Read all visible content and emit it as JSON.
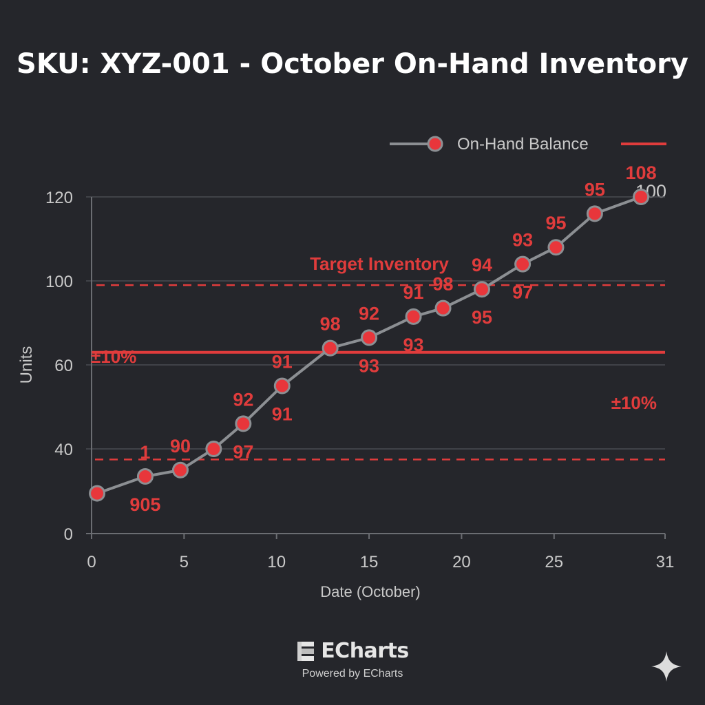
{
  "chart_data": {
    "type": "line",
    "title": "SKU: XYZ-001 - October On-Hand Inventory",
    "xlabel": "Date (October)",
    "ylabel": "Units",
    "x_ticks": [
      "0",
      "5",
      "10",
      "15",
      "20",
      "25",
      "31"
    ],
    "x_tick_values": [
      0,
      5,
      10,
      15,
      20,
      25,
      31
    ],
    "y_ticks": [
      "0",
      "40",
      "60",
      "100",
      "120"
    ],
    "y_tick_values": [
      0,
      40,
      60,
      100,
      120
    ],
    "xlim": [
      0,
      31
    ],
    "grid": true,
    "legend": {
      "position": "top-right",
      "entries": [
        "On-Hand Balance",
        ""
      ]
    },
    "series": [
      {
        "name": "On-Hand Balance",
        "x": [
          0.3,
          2.9,
          4.8,
          6.6,
          8.2,
          10.3,
          12.9,
          15,
          17.4,
          19,
          21.1,
          23.3,
          25.1,
          27.2,
          29.7
        ],
        "y": [
          19,
          27,
          30,
          40,
          46,
          55,
          68,
          73,
          83,
          87,
          96,
          104,
          108,
          116,
          120
        ]
      }
    ],
    "reference_lines": {
      "target": {
        "label": "Target Inventory",
        "value": 98
      },
      "upper": {
        "value": 98
      },
      "lower": {
        "value": 35
      },
      "solid": {
        "value": 66
      }
    },
    "band_labels": [
      "±10%",
      "±10%"
    ],
    "data_labels": [
      {
        "text": "1",
        "x": 2.9,
        "pos": "above"
      },
      {
        "text": "905",
        "x": 2.9,
        "pos": "below"
      },
      {
        "text": "90",
        "x": 4.8,
        "pos": "above"
      },
      {
        "text": "92",
        "x": 8.2,
        "pos": "above"
      },
      {
        "text": "97",
        "x": 8.2,
        "pos": "below"
      },
      {
        "text": "91",
        "x": 10.3,
        "pos": "above"
      },
      {
        "text": "91",
        "x": 10.3,
        "pos": "below"
      },
      {
        "text": "98",
        "x": 12.9,
        "pos": "above"
      },
      {
        "text": "92",
        "x": 15,
        "pos": "above"
      },
      {
        "text": "93",
        "x": 15,
        "pos": "below"
      },
      {
        "text": "91",
        "x": 17.4,
        "pos": "above"
      },
      {
        "text": "93",
        "x": 17.4,
        "pos": "below"
      },
      {
        "text": "98",
        "x": 19,
        "pos": "above"
      },
      {
        "text": "94",
        "x": 21.1,
        "pos": "above"
      },
      {
        "text": "95",
        "x": 21.1,
        "pos": "below"
      },
      {
        "text": "93",
        "x": 23.3,
        "pos": "above"
      },
      {
        "text": "97",
        "x": 23.3,
        "pos": "below"
      },
      {
        "text": "95",
        "x": 25.1,
        "pos": "above"
      },
      {
        "text": "95",
        "x": 27.2,
        "pos": "above"
      },
      {
        "text": "108",
        "x": 29.7,
        "pos": "above"
      }
    ],
    "corner_label": "100"
  },
  "colors": {
    "background": "#25262b",
    "line": "#8c8f93",
    "marker": "#e8363b",
    "accent": "#e03c3c",
    "grid": "#4a4c52",
    "text": "#c9c9c9",
    "title": "#ffffff"
  },
  "brand": {
    "name": "ECharts",
    "subtitle": "Powered by ECharts",
    "icon": "echarts-logo-icon"
  },
  "decorations": {
    "sparkle": "sparkle-icon"
  }
}
